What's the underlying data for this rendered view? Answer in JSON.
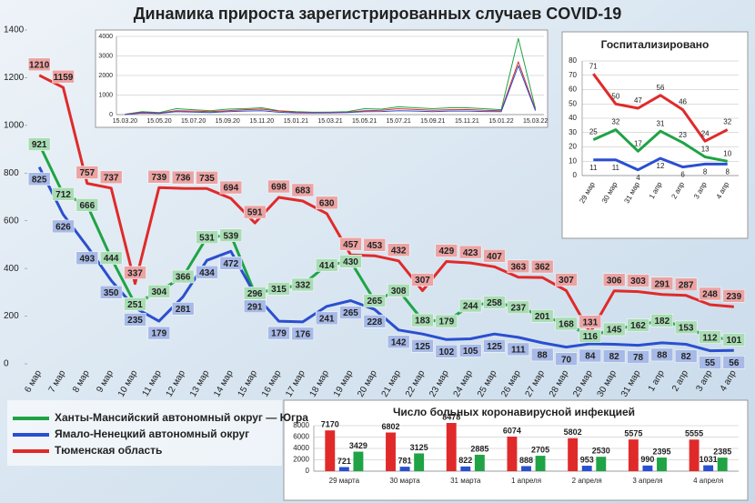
{
  "chart_data": [
    {
      "type": "line",
      "title": "Динамика прироста зарегистрированных случаев COVID-19",
      "categories": [
        "6 мар",
        "7 мар",
        "8 мар",
        "9 мар",
        "10 мар",
        "11 мар",
        "12 мар",
        "13 мар",
        "14 мар",
        "15 мар",
        "16 мар",
        "17 мар",
        "18 мар",
        "19 мар",
        "20 мар",
        "21 мар",
        "22 мар",
        "23 мар",
        "24 мар",
        "25 мар",
        "26 мар",
        "27 мар",
        "28 мар",
        "29 мар",
        "30 мар",
        "31 мар",
        "1 апр",
        "2 апр",
        "3 апр",
        "4 апр"
      ],
      "series": [
        {
          "name": "Ханты-Мансийский автономный округ — Югра",
          "color": "#1fa345",
          "values": [
            921,
            712,
            666,
            444,
            251,
            304,
            366,
            531,
            539,
            296,
            315,
            332,
            414,
            430,
            265,
            308,
            183,
            179,
            244,
            258,
            237,
            201,
            168,
            116,
            145,
            162,
            182,
            153,
            112,
            101
          ]
        },
        {
          "name": "Ямало-Ненецкий автономный округ",
          "color": "#2a4fd0",
          "values": [
            825,
            626,
            493,
            350,
            235,
            179,
            281,
            434,
            472,
            291,
            179,
            176,
            241,
            265,
            228,
            142,
            125,
            102,
            105,
            125,
            111,
            88,
            70,
            84,
            82,
            78,
            88,
            82,
            55,
            56
          ]
        },
        {
          "name": "Тюменская область",
          "color": "#e02a2a",
          "values": [
            1210,
            1159,
            757,
            737,
            337,
            739,
            736,
            735,
            694,
            591,
            698,
            683,
            630,
            457,
            453,
            432,
            307,
            429,
            423,
            407,
            363,
            362,
            307,
            131,
            306,
            303,
            291,
            287,
            248,
            239
          ]
        }
      ],
      "ylim": [
        0,
        1400
      ],
      "yticks": [
        0,
        200,
        400,
        600,
        800,
        1000,
        1200,
        1400
      ],
      "grid": false
    },
    {
      "type": "line",
      "categories": [
        "15.03.20",
        null,
        "15.05.20",
        null,
        "15.07.20",
        null,
        "15.09.20",
        null,
        "15.11.20",
        null,
        "15.01.21",
        null,
        "15.03.21",
        null,
        "15.05.21",
        null,
        "15.07.21",
        null,
        "15.09.21",
        null,
        "15.11.21",
        null,
        "15.01.22",
        null,
        "15.03.22"
      ],
      "series": [
        {
          "color": "#1fa345",
          "values": [
            20,
            150,
            100,
            300,
            250,
            200,
            280,
            300,
            350,
            200,
            150,
            120,
            130,
            150,
            300,
            280,
            400,
            350,
            300,
            350,
            350,
            300,
            250,
            3900,
            300
          ]
        },
        {
          "color": "#e02a2a",
          "values": [
            10,
            120,
            80,
            200,
            180,
            150,
            200,
            250,
            280,
            180,
            120,
            100,
            110,
            120,
            200,
            220,
            300,
            260,
            220,
            250,
            260,
            220,
            200,
            2700,
            250
          ]
        },
        {
          "color": "#2a4fd0",
          "values": [
            5,
            80,
            60,
            150,
            130,
            100,
            150,
            180,
            200,
            120,
            90,
            80,
            90,
            100,
            150,
            160,
            200,
            180,
            150,
            180,
            180,
            160,
            150,
            2500,
            200
          ]
        }
      ],
      "ylim": [
        0,
        4000
      ],
      "yticks": [
        0,
        1000,
        2000,
        3000,
        4000
      ],
      "grid": true
    },
    {
      "type": "line",
      "title": "Госпитализировано",
      "categories": [
        "29 мар",
        "30 мар",
        "31 мар",
        "1 апр",
        "2 апр",
        "3 апр",
        "4 апр"
      ],
      "series": [
        {
          "color": "#e02a2a",
          "values": [
            71,
            50,
            47,
            56,
            46,
            24,
            32
          ]
        },
        {
          "color": "#1fa345",
          "values": [
            25,
            32,
            17,
            31,
            23,
            13,
            10
          ]
        },
        {
          "color": "#2a4fd0",
          "values": [
            11,
            11,
            4,
            12,
            6,
            8,
            8
          ]
        }
      ],
      "ylim": [
        0,
        80
      ],
      "yticks": [
        0,
        10,
        20,
        30,
        40,
        50,
        60,
        70,
        80
      ],
      "grid": true
    },
    {
      "type": "bar",
      "title": "Число больных коронавирусной инфекцией",
      "categories": [
        "29 марта",
        "30 марта",
        "31 марта",
        "1 апреля",
        "2 апреля",
        "3 апреля",
        "4 апреля"
      ],
      "series": [
        {
          "color": "#e02a2a",
          "values": [
            7170,
            6802,
            8478,
            6074,
            5802,
            5575,
            5555
          ]
        },
        {
          "color": "#2a4fd0",
          "values": [
            721,
            781,
            822,
            888,
            953,
            990,
            1031
          ]
        },
        {
          "color": "#1fa345",
          "values": [
            3429,
            3125,
            2885,
            2705,
            2530,
            2395,
            2385
          ]
        }
      ],
      "ylim": [
        0,
        8000
      ],
      "yticks": [
        0,
        2000,
        4000,
        6000,
        8000
      ],
      "grid": true
    }
  ]
}
